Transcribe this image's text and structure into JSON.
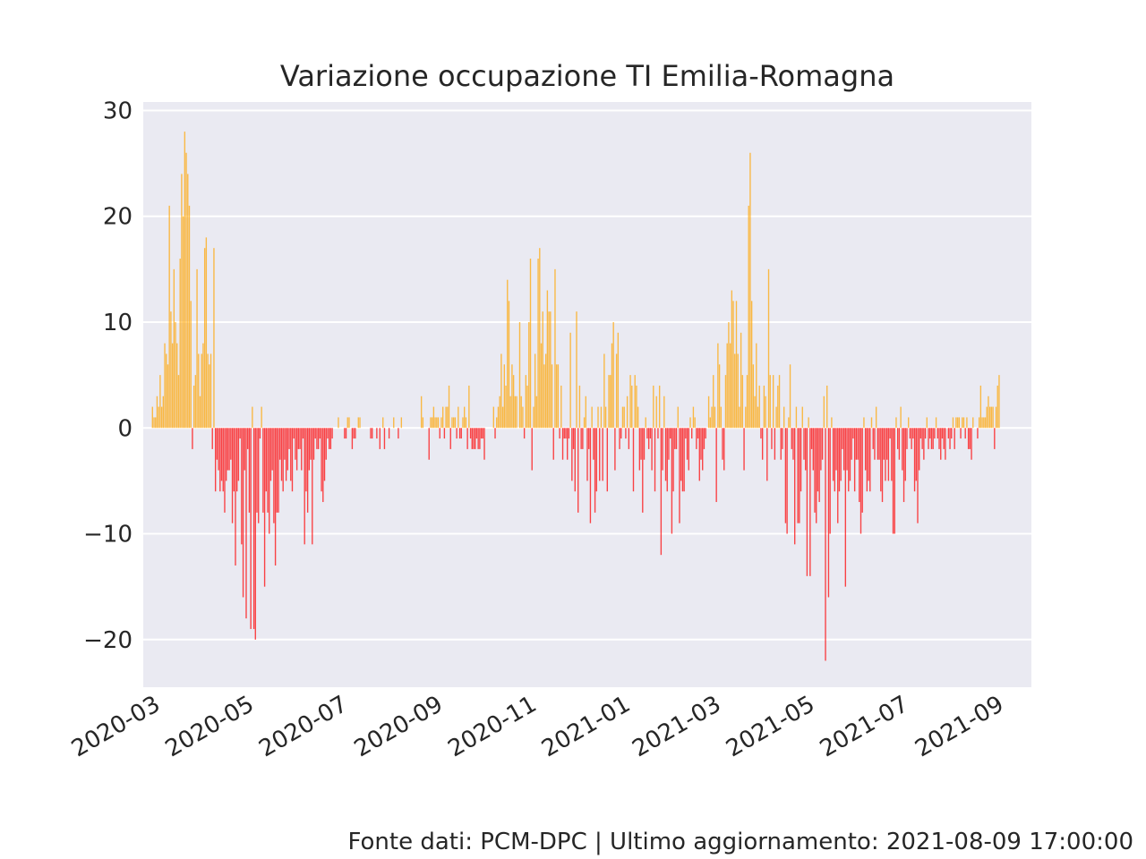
{
  "chart_data": {
    "type": "bar",
    "title": "Variazione occupazione TI Emilia-Romagna",
    "xlabel": "",
    "ylabel": "",
    "ylim": [
      -24.5,
      30.8
    ],
    "xlim": [
      "2020-02-18",
      "2021-09-18"
    ],
    "x_tick_labels": [
      "2020-03",
      "2020-05",
      "2020-07",
      "2020-09",
      "2020-11",
      "2021-01",
      "2021-03",
      "2021-05",
      "2021-07",
      "2021-09"
    ],
    "x_ticks": [
      "2020-03-01",
      "2020-05-01",
      "2020-07-01",
      "2020-09-01",
      "2020-11-01",
      "2021-01-01",
      "2021-03-01",
      "2021-05-01",
      "2021-07-01",
      "2021-09-01"
    ],
    "y_ticks": [
      -20,
      -10,
      0,
      10,
      20,
      30
    ],
    "y_tick_labels": [
      "−20",
      "−10",
      "0",
      "10",
      "20",
      "30"
    ],
    "grid": true,
    "background": "#eaeaf2",
    "colors": {
      "positive": "#ffa500",
      "negative": "#ff0000"
    },
    "series": [
      {
        "start_date": "2020-02-24",
        "values": [
          2,
          1,
          1,
          3,
          2,
          5,
          2,
          3,
          8,
          7,
          6,
          21,
          11,
          8,
          15,
          10,
          8,
          5,
          16,
          24,
          20,
          28,
          26,
          24,
          21,
          12,
          -2,
          4,
          5,
          15,
          7,
          3,
          7,
          8,
          17,
          18,
          7,
          6,
          7,
          -2,
          17,
          -6,
          -3,
          -4,
          -6,
          -5,
          -6,
          -8,
          -5,
          -4,
          -4,
          -3,
          -9,
          -6,
          -13,
          -6,
          -5,
          -1,
          -11,
          -16,
          -4,
          -18,
          -2,
          -8,
          -19,
          2,
          -19,
          -20,
          -8,
          -9,
          -1,
          2,
          -8,
          -15,
          -6,
          -8,
          -10,
          -5,
          -4,
          -9,
          -13,
          -8,
          -8,
          -3,
          -5,
          -6,
          -3,
          -5,
          -4,
          -2,
          -5,
          -6,
          -1,
          -3,
          -4,
          -2,
          -2,
          -4,
          -1,
          -11,
          -6,
          -8,
          -4,
          -3,
          -11,
          -3,
          -1,
          -2,
          -2,
          -1,
          -6,
          -7,
          -5,
          -3,
          -1,
          -2,
          -2,
          -1,
          0,
          0,
          0,
          1,
          0,
          0,
          0,
          -1,
          -1,
          1,
          1,
          0,
          -2,
          -1,
          -1,
          0,
          1,
          1,
          0,
          0,
          0,
          0,
          0,
          0,
          -1,
          -1,
          0,
          0,
          -1,
          0,
          -2,
          0,
          1,
          -2,
          0,
          0,
          -1,
          0,
          0,
          1,
          0,
          0,
          -1,
          0,
          1,
          0,
          0,
          0,
          0,
          0,
          0,
          0,
          0,
          0,
          0,
          0,
          0,
          3,
          1,
          0,
          0,
          0,
          -3,
          1,
          1,
          2,
          1,
          1,
          1,
          -1,
          1,
          2,
          -1,
          2,
          2,
          4,
          -2,
          1,
          1,
          1,
          -1,
          2,
          -1,
          -1,
          1,
          2,
          1,
          -2,
          4,
          -1,
          -2,
          -2,
          -2,
          -1,
          -2,
          -2,
          -1,
          -1,
          -3,
          0,
          0,
          0,
          0,
          0,
          2,
          -1,
          1,
          2,
          3,
          7,
          2,
          6,
          4,
          14,
          12,
          3,
          6,
          5,
          3,
          3,
          0,
          10,
          3,
          2,
          -1,
          5,
          4,
          10,
          16,
          -4,
          2,
          7,
          3,
          16,
          17,
          8,
          11,
          6,
          7,
          13,
          11,
          11,
          6,
          -3,
          15,
          6,
          6,
          -1,
          4,
          -3,
          -1,
          -1,
          -3,
          -1,
          9,
          -5,
          -2,
          -6,
          11,
          -8,
          4,
          -2,
          -2,
          1,
          3,
          -5,
          -2,
          -9,
          2,
          -3,
          -8,
          -6,
          2,
          -5,
          2,
          -5,
          7,
          2,
          -6,
          5,
          5,
          8,
          10,
          -4,
          7,
          9,
          -2,
          -1,
          2,
          2,
          -1,
          3,
          -2,
          5,
          4,
          -6,
          5,
          4,
          2,
          -4,
          -3,
          -8,
          -3,
          1,
          -1,
          -2,
          -1,
          -4,
          4,
          -6,
          3,
          -1,
          4,
          -12,
          -4,
          3,
          -5,
          -6,
          -3,
          -1,
          -10,
          -6,
          -2,
          -2,
          2,
          -9,
          -5,
          -6,
          -6,
          -1,
          -3,
          -4,
          1,
          -1,
          2,
          1,
          -2,
          -1,
          -5,
          -3,
          -4,
          -2,
          -1,
          0,
          3,
          1,
          2,
          5,
          2,
          -7,
          8,
          6,
          2,
          -3,
          -4,
          5,
          8,
          10,
          8,
          13,
          12,
          7,
          12,
          7,
          2,
          9,
          5,
          -4,
          2,
          5,
          21,
          26,
          12,
          6,
          3,
          8,
          2,
          4,
          -1,
          -3,
          4,
          3,
          -5,
          15,
          5,
          -2,
          5,
          -3,
          2,
          4,
          5,
          -3,
          -2,
          2,
          -9,
          -10,
          1,
          6,
          -2,
          -3,
          -11,
          2,
          -9,
          -9,
          -6,
          2,
          -3,
          -4,
          -14,
          1,
          -14,
          -2,
          -4,
          -8,
          -9,
          -6,
          -7,
          -4,
          -3,
          3,
          -22,
          4,
          -16,
          -10,
          1,
          -5,
          -6,
          -4,
          -9,
          -6,
          -5,
          -2,
          -4,
          -15,
          -4,
          -6,
          -5,
          -3,
          -1,
          -6,
          -3,
          -3,
          -7,
          -10,
          -8,
          1,
          -4,
          -6,
          -5,
          -6,
          1,
          -2,
          -3,
          2,
          -3,
          -3,
          -6,
          -7,
          -3,
          -5,
          -3,
          -5,
          -1,
          -5,
          -10,
          -10,
          1,
          -2,
          -3,
          2,
          -4,
          -7,
          -5,
          -2,
          1,
          -1,
          -2,
          -1,
          -6,
          -5,
          -9,
          -4,
          -1,
          -2,
          -3,
          -1,
          1,
          -2,
          -1,
          -2,
          -2,
          -1,
          1,
          -1,
          -2,
          -3,
          -1,
          -2,
          -3,
          0,
          -1,
          -2,
          -1,
          1,
          -2,
          1,
          1,
          1,
          -1,
          1,
          1,
          -1,
          1,
          -2,
          -2,
          -3,
          1,
          0,
          0,
          -1,
          1,
          4,
          1,
          1,
          1,
          2,
          3,
          2,
          2,
          2,
          -2,
          2,
          4,
          5
        ]
      }
    ]
  },
  "footer": "Fonte dati: PCM-DPC | Ultimo aggiornamento: 2021-08-09 17:00:00"
}
